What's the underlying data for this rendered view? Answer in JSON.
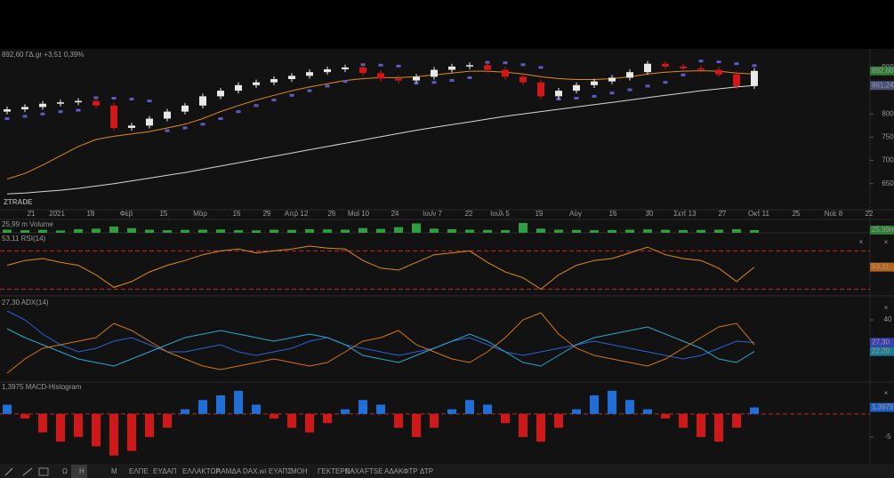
{
  "chart_data": [
    {
      "type": "candlestick",
      "title": "892,60 ΓΔ.gr +3,51 0,39%",
      "watermark": "ZTRADE",
      "xlim": [
        -0.4,
        48.5
      ],
      "xticks": [
        {
          "value": 1.35,
          "label": "21"
        },
        {
          "value": 2.8,
          "label": "2021"
        },
        {
          "value": 4.7,
          "label": "18"
        },
        {
          "value": 6.7,
          "label": "Φεβ"
        },
        {
          "value": 8.8,
          "label": "15"
        },
        {
          "value": 10.85,
          "label": "Μαρ"
        },
        {
          "value": 12.9,
          "label": "16"
        },
        {
          "value": 14.6,
          "label": "29"
        },
        {
          "value": 16.25,
          "label": "Απρ 12"
        },
        {
          "value": 18.25,
          "label": "26"
        },
        {
          "value": 19.75,
          "label": "Μαι 10"
        },
        {
          "value": 21.8,
          "label": "24"
        },
        {
          "value": 23.9,
          "label": "Ιουν 7"
        },
        {
          "value": 25.95,
          "label": "22"
        },
        {
          "value": 27.7,
          "label": "Ιουλ 5"
        },
        {
          "value": 29.9,
          "label": "19"
        },
        {
          "value": 31.95,
          "label": "Αυγ"
        },
        {
          "value": 34.05,
          "label": "16"
        },
        {
          "value": 36.1,
          "label": "30"
        },
        {
          "value": 38.1,
          "label": "Σεπ 13"
        },
        {
          "value": 40.2,
          "label": "27"
        },
        {
          "value": 42.25,
          "label": "Οκτ 11"
        },
        {
          "value": 44.35,
          "label": "25"
        },
        {
          "value": 46.45,
          "label": "Νοε 8"
        },
        {
          "value": 48.45,
          "label": "22"
        }
      ],
      "ylim": [
        596,
        940
      ],
      "yticks": [
        900,
        800,
        750,
        700,
        650
      ],
      "up_color": "#e8e8e8",
      "down_color": "#d01818",
      "title_color": "#4caf50",
      "open": [
        805,
        810,
        815,
        822,
        825,
        828,
        818,
        770,
        775,
        790,
        805,
        818,
        838,
        850,
        862,
        868,
        875,
        882,
        890,
        896,
        900,
        888,
        876,
        872,
        880,
        895,
        902,
        905,
        895,
        880,
        868,
        838,
        850,
        862,
        870,
        878,
        890,
        908,
        902,
        898,
        895,
        885,
        860
      ],
      "high": [
        816,
        821,
        828,
        831,
        834,
        834,
        824,
        781,
        796,
        811,
        824,
        844,
        856,
        868,
        874,
        881,
        888,
        896,
        902,
        906,
        906,
        894,
        882,
        886,
        901,
        908,
        911,
        911,
        901,
        886,
        874,
        856,
        868,
        876,
        884,
        896,
        914,
        914,
        908,
        904,
        901,
        891,
        898.6
      ],
      "low": [
        799,
        804,
        809,
        816,
        819,
        812,
        764,
        764,
        769,
        784,
        799,
        812,
        832,
        844,
        856,
        862,
        869,
        876,
        884,
        890,
        882,
        870,
        866,
        866,
        874,
        889,
        896,
        889,
        874,
        862,
        832,
        832,
        844,
        856,
        864,
        872,
        884,
        896,
        892,
        889,
        879,
        854,
        854
      ],
      "close": [
        810,
        815,
        822,
        825,
        828,
        818,
        770,
        775,
        790,
        805,
        818,
        838,
        850,
        862,
        868,
        875,
        882,
        890,
        896,
        900,
        888,
        876,
        872,
        880,
        895,
        902,
        905,
        895,
        880,
        868,
        838,
        850,
        862,
        870,
        878,
        890,
        908,
        902,
        898,
        895,
        885,
        860,
        892.6
      ],
      "series": [
        {
          "color": "#d8d8d8",
          "style": "line",
          "values": [
            628,
            630,
            633,
            636,
            640,
            645,
            650,
            656,
            662,
            668,
            674,
            681,
            688,
            695,
            702,
            709,
            716,
            723,
            730,
            737,
            744,
            751,
            758,
            765,
            771,
            777,
            783,
            789,
            795,
            800,
            805,
            810,
            815,
            820,
            825,
            830,
            835,
            840,
            845,
            850,
            854,
            858,
            861.24
          ]
        },
        {
          "color": "#e08a1e",
          "style": "line",
          "values": [
            660,
            672,
            690,
            710,
            730,
            745,
            752,
            757,
            762,
            770,
            778,
            790,
            805,
            818,
            830,
            840,
            850,
            858,
            865,
            872,
            876,
            878,
            878,
            880,
            884,
            888,
            892,
            892,
            890,
            886,
            880,
            876,
            874,
            874,
            876,
            880,
            886,
            890,
            892,
            893,
            892,
            888,
            886
          ]
        },
        {
          "color": "#5c5cc8",
          "style": "dots",
          "values": [
            790,
            795,
            800,
            805,
            808,
            835,
            834,
            832,
            828,
            764,
            770,
            778,
            790,
            805,
            818,
            830,
            840,
            850,
            860,
            870,
            906,
            905,
            903,
            866,
            868,
            872,
            878,
            911,
            910,
            906,
            900,
            832,
            834,
            838,
            845,
            852,
            860,
            868,
            884,
            914,
            912,
            908,
            904
          ]
        }
      ],
      "tags": [
        {
          "value": 892.6,
          "label": "892,60",
          "color": "#2e7d32"
        },
        {
          "value": 861.24,
          "label": "861,24",
          "color": "#4a4e78"
        }
      ]
    },
    {
      "type": "bar",
      "title": "25,99 m Volume",
      "title_color": "#4caf50",
      "color": "#2e9e3e",
      "ylim": [
        0,
        120
      ],
      "values": [
        30,
        25,
        28,
        22,
        35,
        40,
        60,
        45,
        30,
        25,
        28,
        30,
        32,
        26,
        24,
        30,
        28,
        35,
        33,
        30,
        45,
        38,
        55,
        90,
        40,
        35,
        30,
        28,
        26,
        95,
        40,
        30,
        28,
        25,
        27,
        30,
        33,
        29,
        26,
        28,
        30,
        35,
        25.99
      ],
      "tags": [
        {
          "value": 25.99,
          "label": "25,99m",
          "color": "#2e7d32"
        }
      ]
    },
    {
      "type": "line",
      "title": "53,11 RSI(14)",
      "title_color": "#e08a1e",
      "ylim": [
        24,
        88
      ],
      "levels": [
        70,
        30
      ],
      "level_color": "#c62828",
      "series": [
        {
          "color": "#e08a1e",
          "values": [
            55,
            60,
            62,
            58,
            55,
            45,
            32,
            38,
            48,
            55,
            60,
            66,
            70,
            72,
            68,
            70,
            72,
            75,
            73,
            72,
            60,
            52,
            50,
            58,
            66,
            68,
            70,
            58,
            48,
            42,
            30,
            45,
            55,
            60,
            62,
            68,
            74,
            66,
            62,
            60,
            52,
            38,
            53.11
          ]
        }
      ],
      "tags": [
        {
          "value": 53.11,
          "label": "53,11",
          "color": "#b8621a"
        }
      ]
    },
    {
      "type": "line",
      "title": "27,30 ADX(14)",
      "title_color": "#3a7bea",
      "ylim": [
        6,
        52.5
      ],
      "yticks": [
        40
      ],
      "series": [
        {
          "color": "#2a62d8",
          "values": [
            45,
            40,
            32,
            26,
            22,
            24,
            28,
            30,
            26,
            22,
            22,
            24,
            26,
            22,
            20,
            22,
            24,
            28,
            30,
            26,
            24,
            22,
            20,
            22,
            24,
            28,
            30,
            26,
            22,
            20,
            22,
            24,
            26,
            28,
            26,
            24,
            22,
            20,
            18,
            20,
            24,
            28,
            27.3
          ]
        },
        {
          "color": "#2aa8cf",
          "values": [
            35,
            30,
            26,
            22,
            18,
            16,
            14,
            18,
            22,
            26,
            30,
            32,
            34,
            32,
            30,
            28,
            30,
            32,
            30,
            26,
            20,
            18,
            16,
            20,
            24,
            28,
            32,
            28,
            22,
            16,
            14,
            20,
            26,
            30,
            32,
            34,
            36,
            32,
            28,
            24,
            18,
            16,
            22.2
          ]
        },
        {
          "color": "#d2741c",
          "values": [
            10,
            18,
            24,
            26,
            28,
            30,
            38,
            34,
            28,
            22,
            18,
            14,
            12,
            14,
            16,
            18,
            16,
            14,
            16,
            22,
            28,
            30,
            34,
            26,
            22,
            18,
            16,
            22,
            30,
            40,
            44,
            32,
            24,
            20,
            18,
            16,
            14,
            18,
            24,
            30,
            36,
            38,
            26
          ]
        }
      ],
      "tags": [
        {
          "value": 27.3,
          "label": "27,30",
          "color": "#3b3fb0"
        },
        {
          "value": 22.2,
          "label": "22,20",
          "color": "#1d7c94"
        }
      ]
    },
    {
      "type": "bar",
      "title": "1,3975 MACD-Histogram",
      "title_color": "#2aa8cf",
      "ylim": [
        -10.4,
        6.5
      ],
      "yticks": [
        -5
      ],
      "levels": [
        0
      ],
      "level_color": "#c62828",
      "positive_color": "#1e6fd9",
      "negative_color": "#d01818",
      "values": [
        2,
        -1,
        -4,
        -6,
        -5,
        -7,
        -9,
        -8,
        -5,
        -3,
        1,
        3,
        4,
        5,
        2,
        -1,
        -3,
        -4,
        -2,
        1,
        3,
        2,
        -3,
        -5,
        -3,
        1,
        3,
        2,
        -2,
        -5,
        -6,
        -3,
        1,
        4,
        5,
        3,
        1,
        -1,
        -3,
        -5,
        -6,
        -3,
        1.3975
      ],
      "tags": [
        {
          "value": 1.3975,
          "label": "1,3975",
          "color": "#1e5fc4"
        }
      ]
    }
  ],
  "toolbar": {
    "items": [
      "Ω",
      "Η",
      "Μ",
      "ΕΛΠΕ",
      "ΕΥΔΑΠ",
      "ΕΛΛΑΚΤΩΡ",
      "ΛΑΜΔΑ",
      "DAX.wi",
      "ΕΥΑΠΣ",
      "ΜΟΗ",
      "ΓΕΚΤΕΡΝΑ",
      "ΕΛΧΑ",
      "FTSE",
      "ΑΔΑΚ",
      "ΦΤΡ",
      "ΔΤΡ"
    ]
  }
}
